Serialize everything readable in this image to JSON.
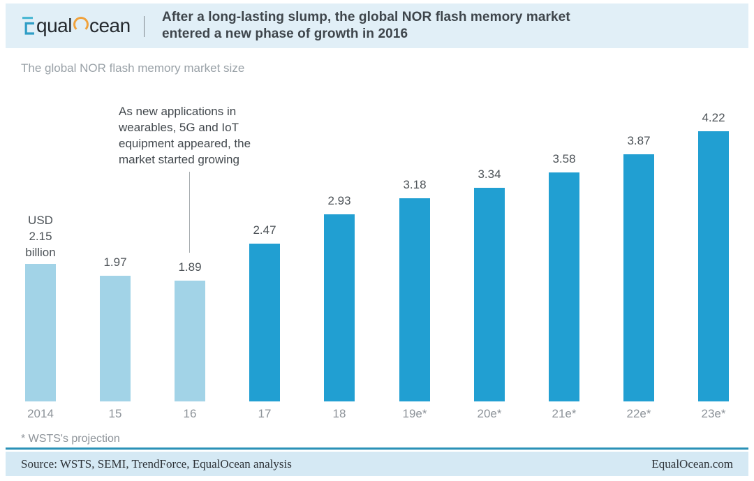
{
  "header": {
    "logo": {
      "part1": "qual",
      "part2": "cean",
      "teal": "#2f9ec6",
      "light_teal": "#4cb8d4",
      "orange": "#f0a23c"
    },
    "title": "After a long-lasting slump, the global NOR flash memory market\nentered a new phase of growth in 2016"
  },
  "subtitle": "The global NOR flash memory market size",
  "annotation": {
    "text": "As new applications in\nwearables, 5G and IoT\nequipment appeared, the\nmarket started growing"
  },
  "chart_data": {
    "type": "bar",
    "title": "The global NOR flash memory market size",
    "unit": "USD billion",
    "categories": [
      "2014",
      "15",
      "16",
      "17",
      "18",
      "19e*",
      "20e*",
      "21e*",
      "22e*",
      "23e*"
    ],
    "values": [
      2.15,
      1.97,
      1.89,
      2.47,
      2.93,
      3.18,
      3.34,
      3.58,
      3.87,
      4.22
    ],
    "bar_labels": [
      "USD\n2.15\nbillion",
      "1.97",
      "1.89",
      "2.47",
      "2.93",
      "3.18",
      "3.34",
      "3.58",
      "3.87",
      "4.22"
    ],
    "colors": {
      "historical_light": "#a2d3e7",
      "projection_dark": "#219fd2"
    },
    "light_color_count": 3,
    "ylim": [
      0,
      4.5
    ],
    "grid": false,
    "legend": "none",
    "xlabel": "",
    "ylabel": ""
  },
  "footnote": "* WSTS's projection",
  "footer": {
    "source": "Source: WSTS, SEMI, TrendForce, EqualOcean analysis",
    "site": "EqualOcean.com"
  }
}
